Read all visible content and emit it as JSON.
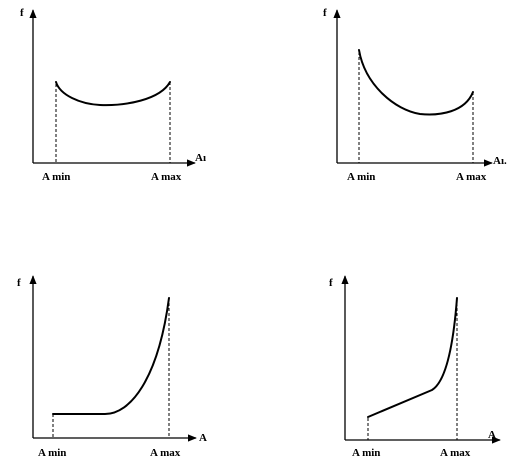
{
  "panels": [
    {
      "y_label": "f",
      "x_label": "Aı",
      "min_label": "A min",
      "max_label": "A max"
    },
    {
      "y_label": "f",
      "x_label": "Aı.",
      "min_label": "A min",
      "max_label": "A max"
    },
    {
      "y_label": "f",
      "x_label": "A",
      "min_label": "A min",
      "max_label": "A max"
    },
    {
      "y_label": "f",
      "x_label": "A",
      "min_label": "A min",
      "max_label": "A max"
    }
  ]
}
